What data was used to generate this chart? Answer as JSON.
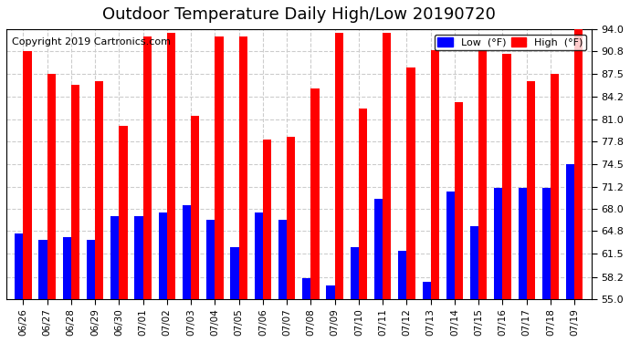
{
  "title": "Outdoor Temperature Daily High/Low 20190720",
  "copyright": "Copyright 2019 Cartronics.com",
  "categories": [
    "06/26",
    "06/27",
    "06/28",
    "06/29",
    "06/30",
    "07/01",
    "07/02",
    "07/03",
    "07/04",
    "07/05",
    "07/06",
    "07/07",
    "07/08",
    "07/09",
    "07/10",
    "07/11",
    "07/12",
    "07/13",
    "07/14",
    "07/15",
    "07/16",
    "07/17",
    "07/18",
    "07/19"
  ],
  "high": [
    90.8,
    87.5,
    86.0,
    86.5,
    80.0,
    93.0,
    93.5,
    81.5,
    93.0,
    93.0,
    78.0,
    78.5,
    85.5,
    93.5,
    82.5,
    93.5,
    88.5,
    91.0,
    83.5,
    91.0,
    90.5,
    86.5,
    87.5,
    94.0
  ],
  "low": [
    64.5,
    63.5,
    64.0,
    63.5,
    67.0,
    67.0,
    67.5,
    68.5,
    66.5,
    62.5,
    67.5,
    66.5,
    58.0,
    57.0,
    62.5,
    69.5,
    62.0,
    57.5,
    70.5,
    65.5,
    71.0,
    71.0,
    71.0,
    74.5
  ],
  "high_color": "#ff0000",
  "low_color": "#0000ff",
  "bg_color": "#ffffff",
  "grid_color": "#cccccc",
  "ylim": [
    55.0,
    94.0
  ],
  "yticks": [
    55.0,
    58.2,
    61.5,
    64.8,
    68.0,
    71.2,
    74.5,
    77.8,
    81.0,
    84.2,
    87.5,
    90.8,
    94.0
  ],
  "title_fontsize": 13,
  "copyright_fontsize": 8,
  "bar_width": 0.35
}
